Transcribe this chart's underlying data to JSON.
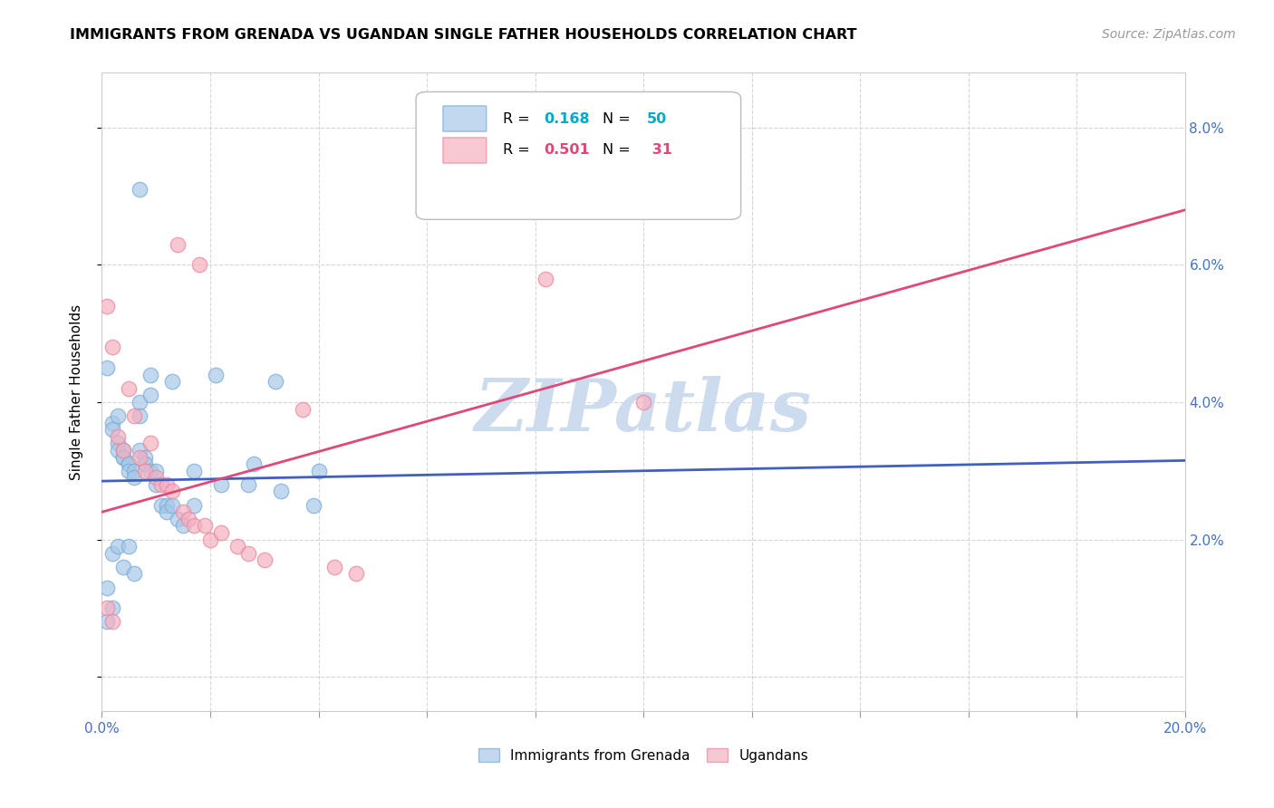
{
  "title": "IMMIGRANTS FROM GRENADA VS UGANDAN SINGLE FATHER HOUSEHOLDS CORRELATION CHART",
  "source": "Source: ZipAtlas.com",
  "ylabel": "Single Father Households",
  "xlim": [
    0.0,
    0.2
  ],
  "ylim": [
    -0.005,
    0.088
  ],
  "xticks": [
    0.0,
    0.02,
    0.04,
    0.06,
    0.08,
    0.1,
    0.12,
    0.14,
    0.16,
    0.18,
    0.2
  ],
  "yticks": [
    0.0,
    0.02,
    0.04,
    0.06,
    0.08
  ],
  "ytick_labels_right": [
    "",
    "2.0%",
    "4.0%",
    "6.0%",
    "8.0%"
  ],
  "xtick_labels": [
    "0.0%",
    "",
    "",
    "",
    "",
    "",
    "",
    "",
    "",
    "",
    "20.0%"
  ],
  "blue_color": "#a8c8e8",
  "blue_edge_color": "#7aacd4",
  "pink_color": "#f4b0c0",
  "pink_edge_color": "#e888a0",
  "blue_line_color": "#4060c0",
  "pink_line_color": "#e04878",
  "watermark": "ZIPatlas",
  "watermark_color": "#ccdcee",
  "blue_scatter": [
    [
      0.001,
      0.045
    ],
    [
      0.002,
      0.037
    ],
    [
      0.002,
      0.036
    ],
    [
      0.003,
      0.038
    ],
    [
      0.003,
      0.034
    ],
    [
      0.003,
      0.033
    ],
    [
      0.004,
      0.033
    ],
    [
      0.004,
      0.032
    ],
    [
      0.004,
      0.032
    ],
    [
      0.005,
      0.031
    ],
    [
      0.005,
      0.031
    ],
    [
      0.005,
      0.03
    ],
    [
      0.006,
      0.03
    ],
    [
      0.006,
      0.029
    ],
    [
      0.007,
      0.04
    ],
    [
      0.007,
      0.038
    ],
    [
      0.007,
      0.033
    ],
    [
      0.008,
      0.032
    ],
    [
      0.008,
      0.031
    ],
    [
      0.009,
      0.044
    ],
    [
      0.009,
      0.041
    ],
    [
      0.009,
      0.03
    ],
    [
      0.01,
      0.03
    ],
    [
      0.01,
      0.028
    ],
    [
      0.011,
      0.025
    ],
    [
      0.012,
      0.025
    ],
    [
      0.012,
      0.024
    ],
    [
      0.013,
      0.043
    ],
    [
      0.013,
      0.025
    ],
    [
      0.014,
      0.023
    ],
    [
      0.015,
      0.022
    ],
    [
      0.017,
      0.025
    ],
    [
      0.021,
      0.044
    ],
    [
      0.022,
      0.028
    ],
    [
      0.027,
      0.028
    ],
    [
      0.028,
      0.031
    ],
    [
      0.032,
      0.043
    ],
    [
      0.033,
      0.027
    ],
    [
      0.039,
      0.025
    ],
    [
      0.04,
      0.03
    ],
    [
      0.001,
      0.013
    ],
    [
      0.002,
      0.018
    ],
    [
      0.003,
      0.019
    ],
    [
      0.004,
      0.016
    ],
    [
      0.005,
      0.019
    ],
    [
      0.006,
      0.015
    ],
    [
      0.017,
      0.03
    ],
    [
      0.007,
      0.071
    ],
    [
      0.001,
      0.008
    ],
    [
      0.002,
      0.01
    ]
  ],
  "pink_scatter": [
    [
      0.001,
      0.054
    ],
    [
      0.002,
      0.048
    ],
    [
      0.003,
      0.035
    ],
    [
      0.004,
      0.033
    ],
    [
      0.005,
      0.042
    ],
    [
      0.006,
      0.038
    ],
    [
      0.007,
      0.032
    ],
    [
      0.008,
      0.03
    ],
    [
      0.009,
      0.034
    ],
    [
      0.01,
      0.029
    ],
    [
      0.011,
      0.028
    ],
    [
      0.012,
      0.028
    ],
    [
      0.013,
      0.027
    ],
    [
      0.014,
      0.063
    ],
    [
      0.015,
      0.024
    ],
    [
      0.016,
      0.023
    ],
    [
      0.017,
      0.022
    ],
    [
      0.018,
      0.06
    ],
    [
      0.019,
      0.022
    ],
    [
      0.02,
      0.02
    ],
    [
      0.022,
      0.021
    ],
    [
      0.025,
      0.019
    ],
    [
      0.027,
      0.018
    ],
    [
      0.03,
      0.017
    ],
    [
      0.037,
      0.039
    ],
    [
      0.043,
      0.016
    ],
    [
      0.047,
      0.015
    ],
    [
      0.082,
      0.058
    ],
    [
      0.1,
      0.04
    ],
    [
      0.001,
      0.01
    ],
    [
      0.002,
      0.008
    ]
  ],
  "blue_line": {
    "x0": 0.0,
    "y0": 0.0285,
    "x1": 0.2,
    "y1": 0.0315
  },
  "pink_line": {
    "x0": 0.0,
    "y0": 0.024,
    "x1": 0.2,
    "y1": 0.068
  }
}
